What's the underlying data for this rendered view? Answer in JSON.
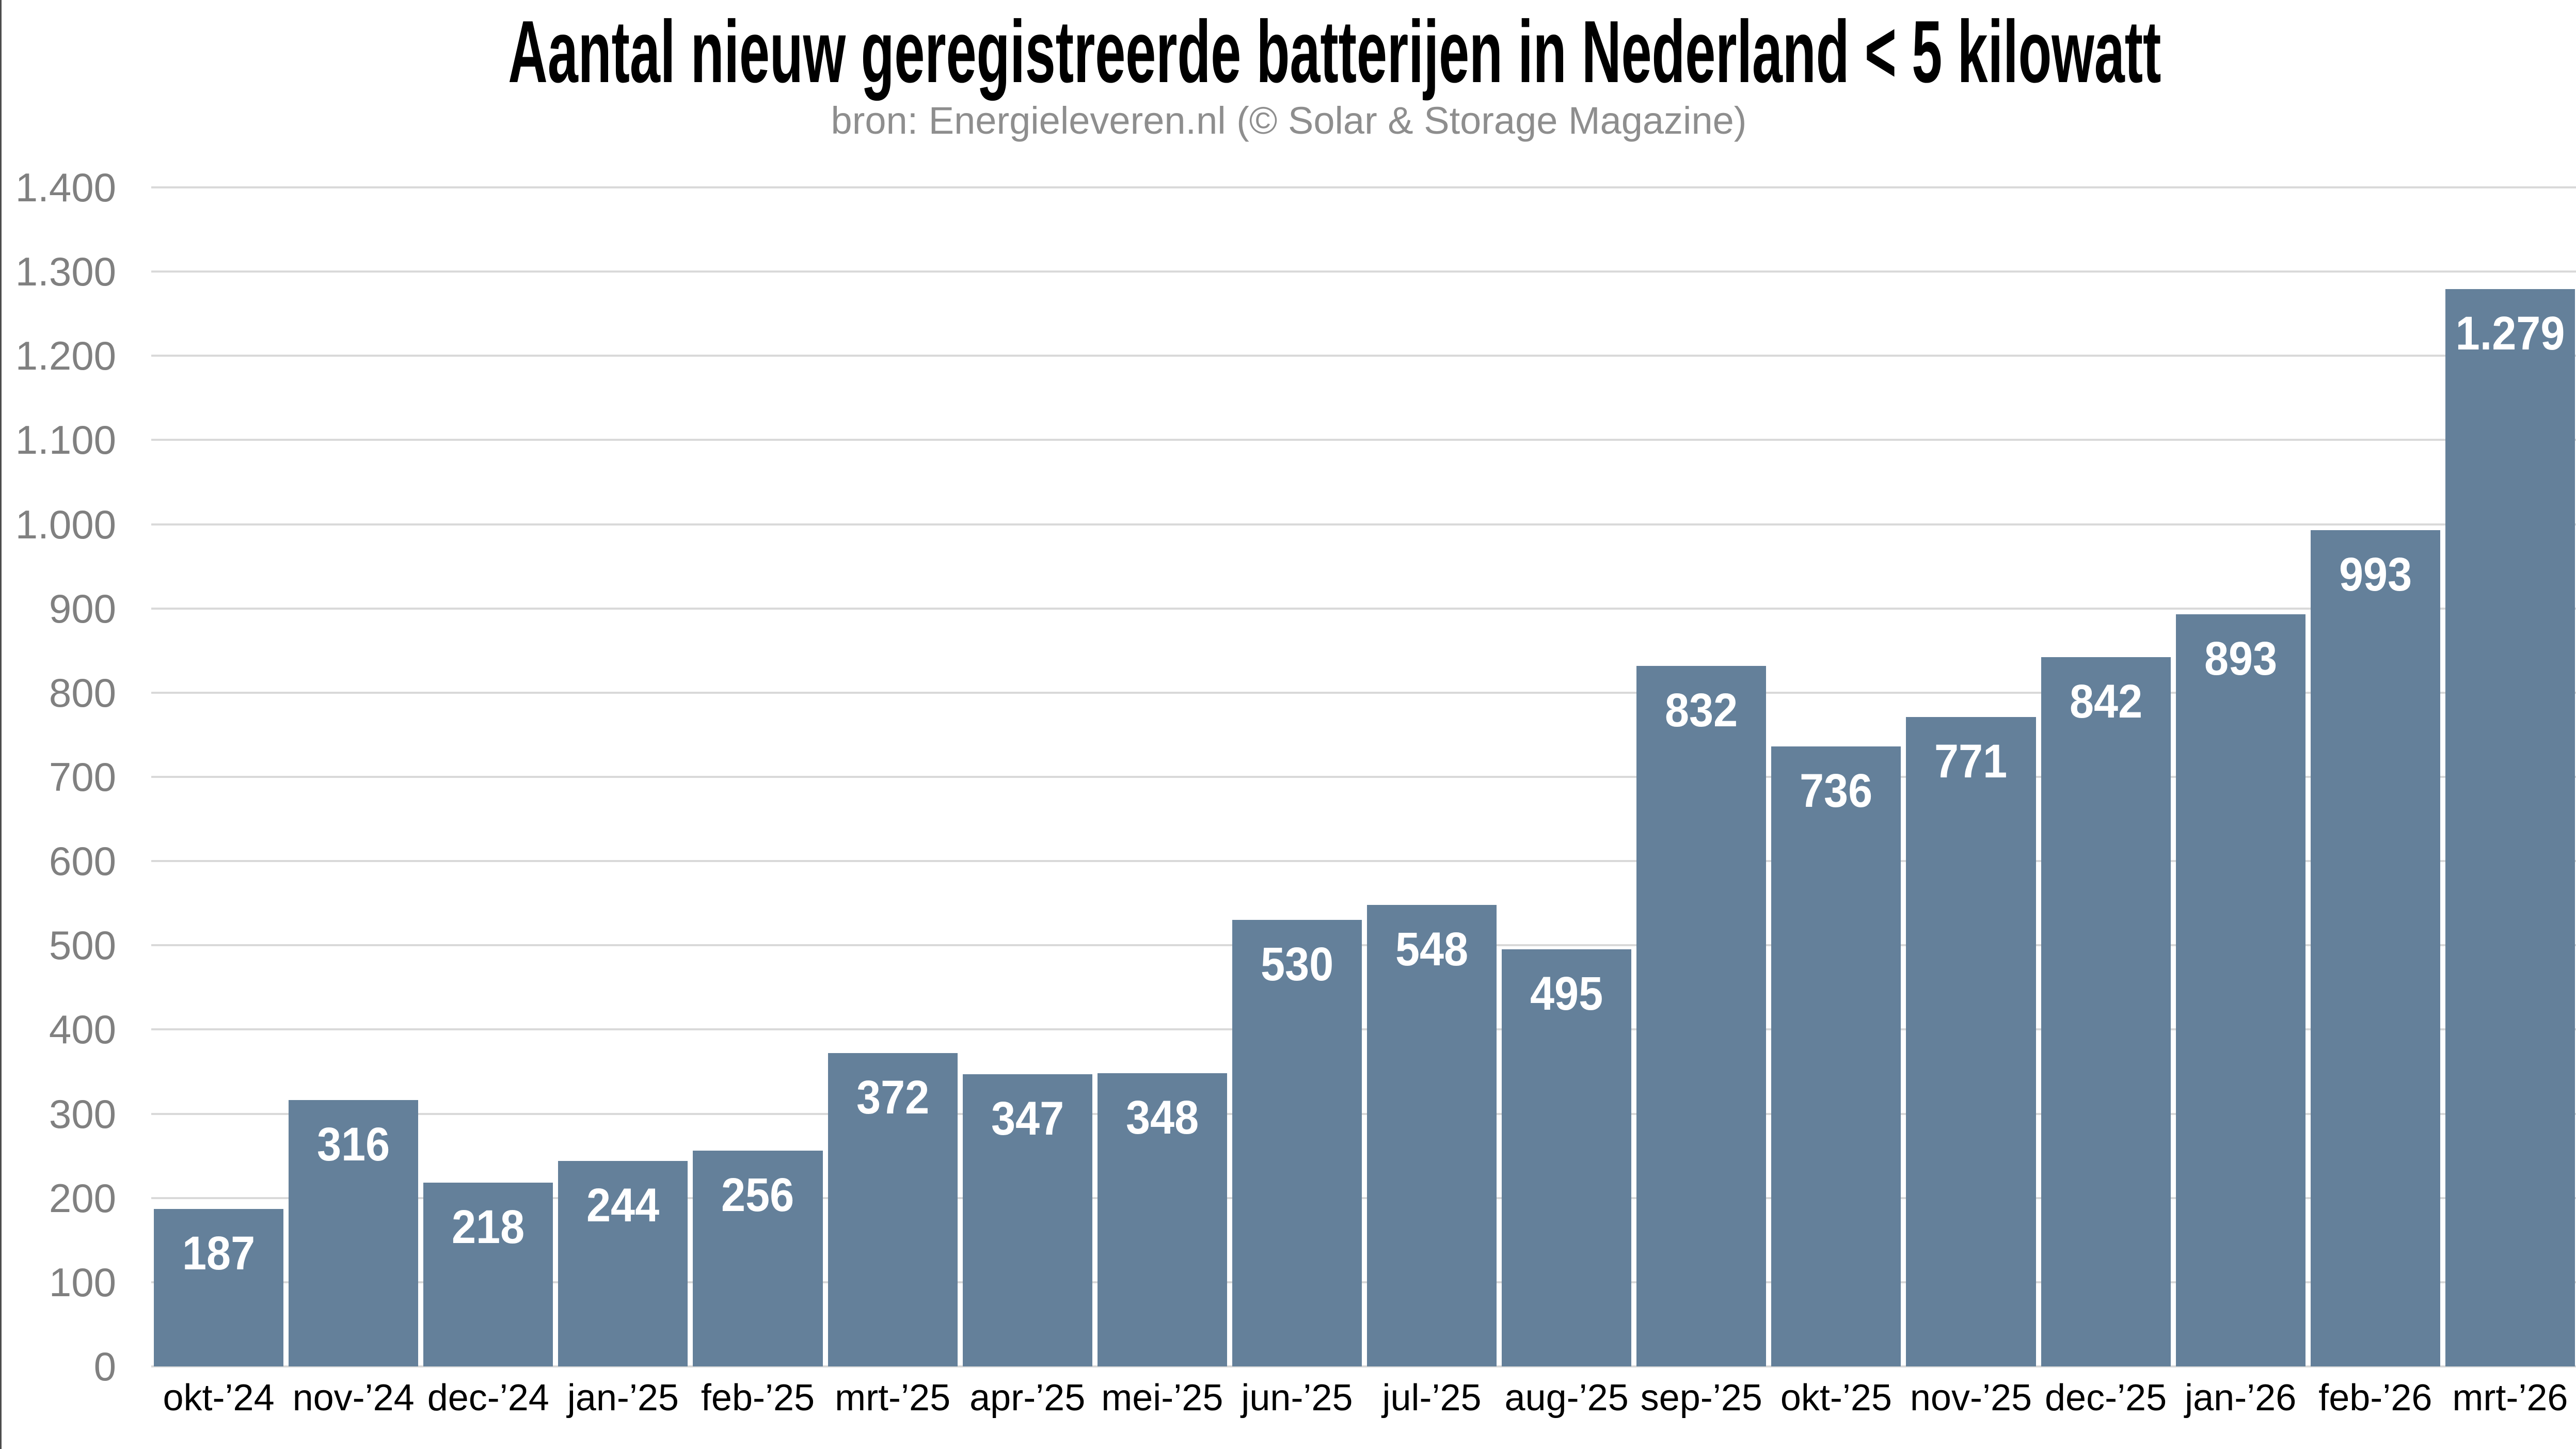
{
  "page": {
    "background": "#ffffff",
    "border_left_color": "#4d4d4d"
  },
  "chart_data": {
    "type": "bar",
    "title": "Aantal nieuw geregistreerde batterijen in Nederland < 5 kilowatt",
    "subtitle": "bron: Energieleveren.nl (© Solar & Storage Magazine)",
    "categories": [
      "okt-’24",
      "nov-’24",
      "dec-’24",
      "jan-’25",
      "feb-’25",
      "mrt-’25",
      "apr-’25",
      "mei-’25",
      "jun-’25",
      "jul-’25",
      "aug-’25",
      "sep-’25",
      "okt-’25",
      "nov-’25",
      "dec-’25",
      "jan-’26",
      "feb-’26",
      "mrt-’26"
    ],
    "values": [
      187,
      316,
      218,
      244,
      256,
      372,
      347,
      348,
      530,
      548,
      495,
      832,
      736,
      771,
      842,
      893,
      993,
      1279
    ],
    "value_labels": [
      "187",
      "316",
      "218",
      "244",
      "256",
      "372",
      "347",
      "348",
      "530",
      "548",
      "495",
      "832",
      "736",
      "771",
      "842",
      "893",
      "993",
      "1.279"
    ],
    "xlabel": "",
    "ylabel": "",
    "ylim": [
      0,
      1400
    ],
    "ytick_step": 100,
    "ytick_labels": [
      "0",
      "100",
      "200",
      "300",
      "400",
      "500",
      "600",
      "700",
      "800",
      "900",
      "1.000",
      "1.100",
      "1.200",
      "1.300",
      "1.400"
    ],
    "grid": true,
    "legend": "none",
    "colors": {
      "bar": "#64809a",
      "bar_value_label": "#ffffff",
      "gridline": "#d9d9d9",
      "y_axis_text": "#808080",
      "x_axis_text": "#000000",
      "title_text": "#000000",
      "subtitle_text": "#8e8e8e"
    }
  }
}
